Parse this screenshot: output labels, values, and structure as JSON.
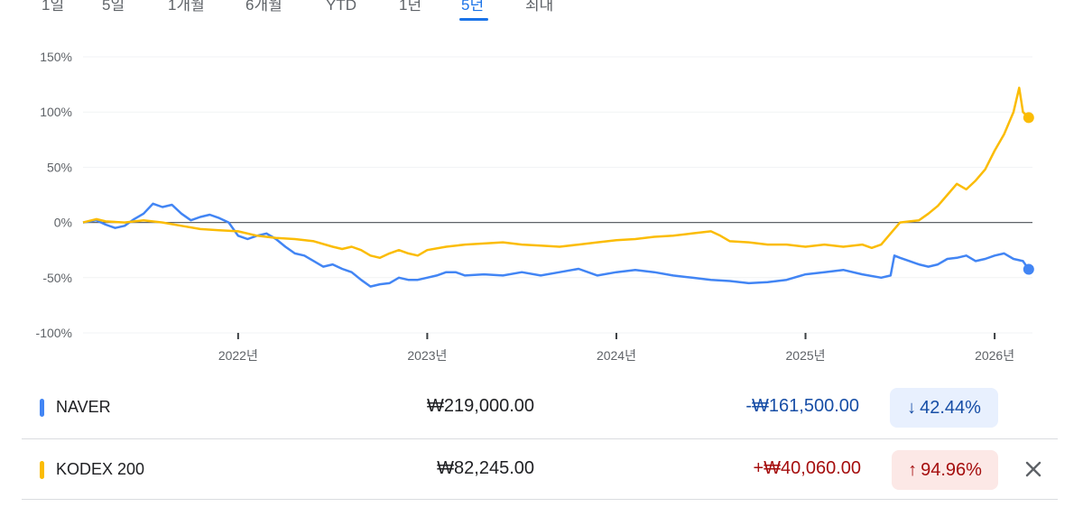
{
  "tabs": [
    {
      "label": "1일",
      "active": false
    },
    {
      "label": "5일",
      "active": false
    },
    {
      "label": "1개월",
      "active": false
    },
    {
      "label": "6개월",
      "active": false
    },
    {
      "label": "YTD",
      "active": false
    },
    {
      "label": "1년",
      "active": false
    },
    {
      "label": "5년",
      "active": true
    },
    {
      "label": "최대",
      "active": false
    }
  ],
  "chart_data": {
    "type": "line",
    "ylim": [
      -100,
      150
    ],
    "y_ticks": [
      "150%",
      "100%",
      "50%",
      "0%",
      "-50%",
      "-100%"
    ],
    "y_tick_values": [
      150,
      100,
      50,
      0,
      -50,
      -100
    ],
    "x_ticks": [
      "2022년",
      "2023년",
      "2024년",
      "2025년",
      "2026년"
    ],
    "x_tick_values": [
      2022.0,
      2023.0,
      2024.0,
      2025.0,
      2026.0
    ],
    "xlim": [
      2021.18,
      2026.2
    ],
    "zero_line": true,
    "series": [
      {
        "name": "NAVER",
        "color": "#4285f4",
        "end_value": -42.44,
        "points": [
          [
            2021.18,
            0
          ],
          [
            2021.25,
            2
          ],
          [
            2021.3,
            -2
          ],
          [
            2021.35,
            -5
          ],
          [
            2021.4,
            -3
          ],
          [
            2021.45,
            3
          ],
          [
            2021.5,
            8
          ],
          [
            2021.55,
            17
          ],
          [
            2021.6,
            14
          ],
          [
            2021.65,
            16
          ],
          [
            2021.7,
            8
          ],
          [
            2021.75,
            2
          ],
          [
            2021.8,
            5
          ],
          [
            2021.85,
            7
          ],
          [
            2021.9,
            4
          ],
          [
            2021.95,
            0
          ],
          [
            2022.0,
            -12
          ],
          [
            2022.05,
            -15
          ],
          [
            2022.1,
            -12
          ],
          [
            2022.15,
            -10
          ],
          [
            2022.2,
            -15
          ],
          [
            2022.25,
            -22
          ],
          [
            2022.3,
            -28
          ],
          [
            2022.35,
            -30
          ],
          [
            2022.4,
            -35
          ],
          [
            2022.45,
            -40
          ],
          [
            2022.5,
            -38
          ],
          [
            2022.55,
            -42
          ],
          [
            2022.6,
            -45
          ],
          [
            2022.65,
            -52
          ],
          [
            2022.7,
            -58
          ],
          [
            2022.75,
            -56
          ],
          [
            2022.8,
            -55
          ],
          [
            2022.85,
            -50
          ],
          [
            2022.9,
            -52
          ],
          [
            2022.95,
            -52
          ],
          [
            2023.0,
            -50
          ],
          [
            2023.05,
            -48
          ],
          [
            2023.1,
            -45
          ],
          [
            2023.15,
            -45
          ],
          [
            2023.2,
            -48
          ],
          [
            2023.3,
            -47
          ],
          [
            2023.4,
            -48
          ],
          [
            2023.5,
            -45
          ],
          [
            2023.6,
            -48
          ],
          [
            2023.7,
            -45
          ],
          [
            2023.8,
            -42
          ],
          [
            2023.9,
            -48
          ],
          [
            2024.0,
            -45
          ],
          [
            2024.1,
            -43
          ],
          [
            2024.2,
            -45
          ],
          [
            2024.3,
            -48
          ],
          [
            2024.4,
            -50
          ],
          [
            2024.5,
            -52
          ],
          [
            2024.6,
            -53
          ],
          [
            2024.7,
            -55
          ],
          [
            2024.8,
            -54
          ],
          [
            2024.9,
            -52
          ],
          [
            2025.0,
            -47
          ],
          [
            2025.1,
            -45
          ],
          [
            2025.2,
            -43
          ],
          [
            2025.3,
            -47
          ],
          [
            2025.4,
            -50
          ],
          [
            2025.45,
            -48
          ],
          [
            2025.47,
            -30
          ],
          [
            2025.5,
            -32
          ],
          [
            2025.55,
            -35
          ],
          [
            2025.6,
            -38
          ],
          [
            2025.65,
            -40
          ],
          [
            2025.7,
            -38
          ],
          [
            2025.75,
            -33
          ],
          [
            2025.8,
            -32
          ],
          [
            2025.85,
            -30
          ],
          [
            2025.9,
            -35
          ],
          [
            2025.95,
            -33
          ],
          [
            2026.0,
            -30
          ],
          [
            2026.05,
            -28
          ],
          [
            2026.1,
            -33
          ],
          [
            2026.15,
            -35
          ],
          [
            2026.18,
            -42.44
          ]
        ]
      },
      {
        "name": "KODEX 200",
        "color": "#fbbc04",
        "end_value": 94.96,
        "points": [
          [
            2021.18,
            0
          ],
          [
            2021.25,
            3
          ],
          [
            2021.3,
            1
          ],
          [
            2021.4,
            0
          ],
          [
            2021.5,
            2
          ],
          [
            2021.6,
            0
          ],
          [
            2021.7,
            -3
          ],
          [
            2021.8,
            -6
          ],
          [
            2021.9,
            -7
          ],
          [
            2022.0,
            -8
          ],
          [
            2022.1,
            -12
          ],
          [
            2022.2,
            -14
          ],
          [
            2022.3,
            -15
          ],
          [
            2022.4,
            -17
          ],
          [
            2022.5,
            -22
          ],
          [
            2022.55,
            -24
          ],
          [
            2022.6,
            -22
          ],
          [
            2022.65,
            -25
          ],
          [
            2022.7,
            -30
          ],
          [
            2022.75,
            -32
          ],
          [
            2022.8,
            -28
          ],
          [
            2022.85,
            -25
          ],
          [
            2022.9,
            -28
          ],
          [
            2022.95,
            -30
          ],
          [
            2023.0,
            -25
          ],
          [
            2023.1,
            -22
          ],
          [
            2023.2,
            -20
          ],
          [
            2023.3,
            -19
          ],
          [
            2023.4,
            -18
          ],
          [
            2023.5,
            -20
          ],
          [
            2023.6,
            -21
          ],
          [
            2023.7,
            -22
          ],
          [
            2023.8,
            -20
          ],
          [
            2023.9,
            -18
          ],
          [
            2024.0,
            -16
          ],
          [
            2024.1,
            -15
          ],
          [
            2024.2,
            -13
          ],
          [
            2024.3,
            -12
          ],
          [
            2024.4,
            -10
          ],
          [
            2024.5,
            -8
          ],
          [
            2024.55,
            -12
          ],
          [
            2024.6,
            -17
          ],
          [
            2024.7,
            -18
          ],
          [
            2024.8,
            -20
          ],
          [
            2024.9,
            -20
          ],
          [
            2025.0,
            -22
          ],
          [
            2025.1,
            -20
          ],
          [
            2025.2,
            -22
          ],
          [
            2025.3,
            -20
          ],
          [
            2025.35,
            -23
          ],
          [
            2025.4,
            -20
          ],
          [
            2025.45,
            -10
          ],
          [
            2025.5,
            0
          ],
          [
            2025.55,
            1
          ],
          [
            2025.6,
            2
          ],
          [
            2025.65,
            8
          ],
          [
            2025.7,
            15
          ],
          [
            2025.75,
            25
          ],
          [
            2025.8,
            35
          ],
          [
            2025.85,
            30
          ],
          [
            2025.9,
            38
          ],
          [
            2025.95,
            48
          ],
          [
            2026.0,
            65
          ],
          [
            2026.05,
            80
          ],
          [
            2026.1,
            100
          ],
          [
            2026.13,
            122
          ],
          [
            2026.15,
            100
          ],
          [
            2026.18,
            94.96
          ]
        ]
      }
    ]
  },
  "rows": [
    {
      "name": "NAVER",
      "color": "#4285f4",
      "price": "₩219,000.00",
      "change": "-₩161,500.00",
      "change_color": "#174ea6",
      "pill_arrow": "↓",
      "pill_text": "42.44%",
      "pill_bg": "#e8f0fe",
      "pill_color": "#174ea6"
    },
    {
      "name": "KODEX 200",
      "color": "#fbbc04",
      "price": "₩82,245.00",
      "change": "+₩40,060.00",
      "change_color": "#a50e0e",
      "pill_arrow": "↑",
      "pill_text": "94.96%",
      "pill_bg": "#fce8e6",
      "pill_color": "#a50e0e",
      "close_icon": "close-icon"
    }
  ]
}
